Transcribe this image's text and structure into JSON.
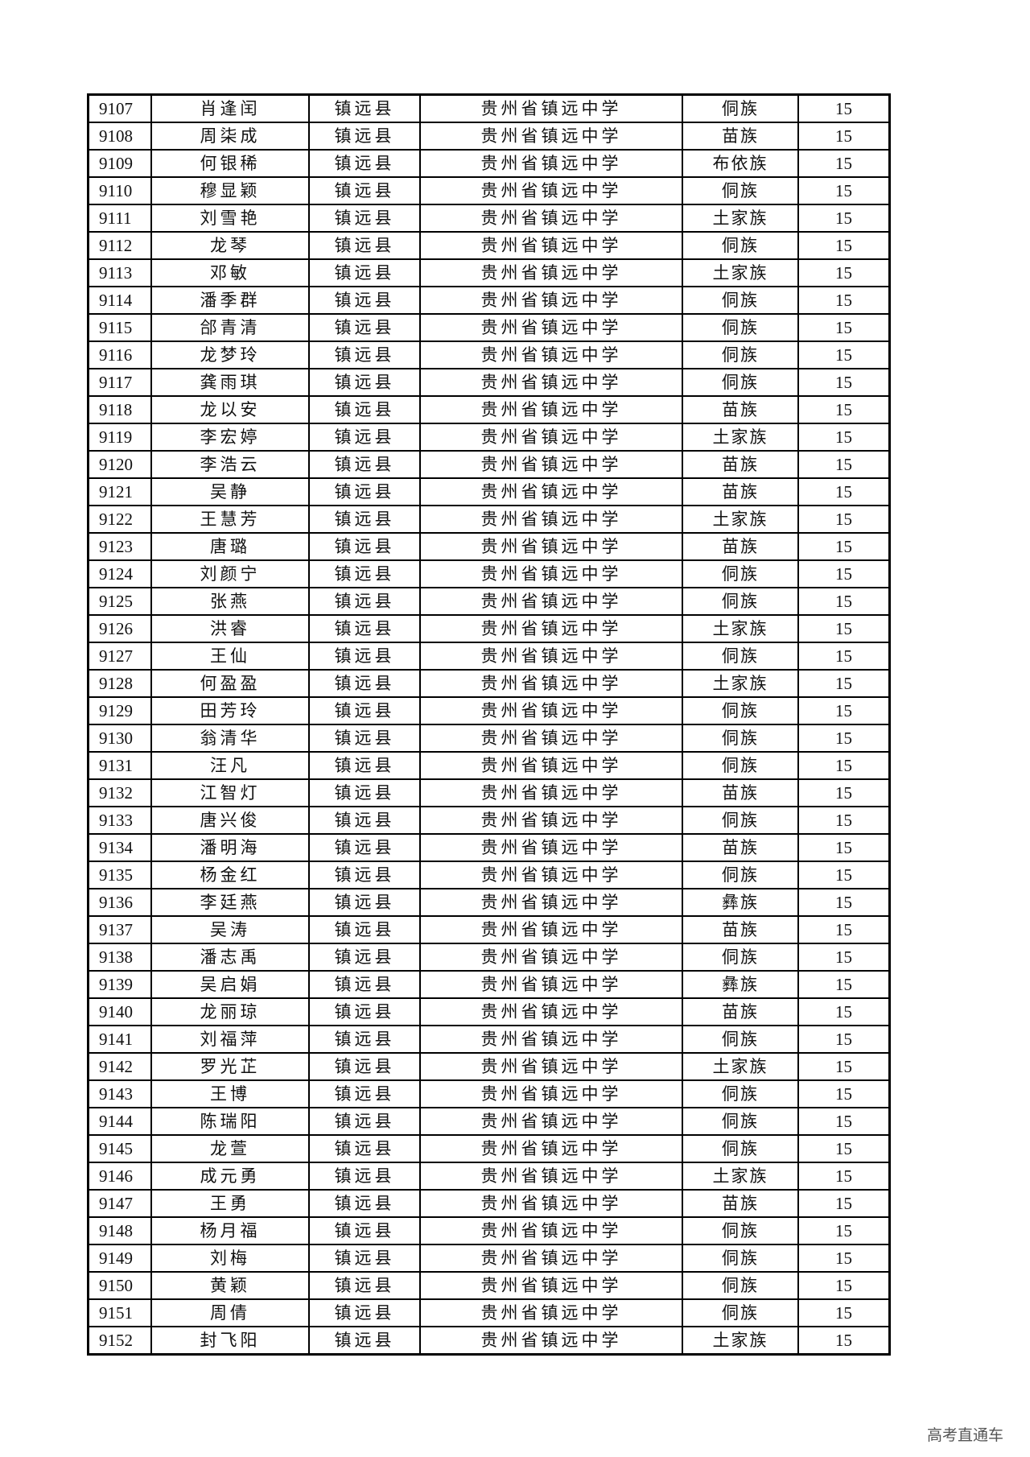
{
  "rows": [
    [
      "9107",
      "肖逢闰",
      "镇远县",
      "贵州省镇远中学",
      "侗族",
      "15"
    ],
    [
      "9108",
      "周柒成",
      "镇远县",
      "贵州省镇远中学",
      "苗族",
      "15"
    ],
    [
      "9109",
      "何银稀",
      "镇远县",
      "贵州省镇远中学",
      "布依族",
      "15"
    ],
    [
      "9110",
      "穆显颖",
      "镇远县",
      "贵州省镇远中学",
      "侗族",
      "15"
    ],
    [
      "9111",
      "刘雪艳",
      "镇远县",
      "贵州省镇远中学",
      "土家族",
      "15"
    ],
    [
      "9112",
      "龙琴",
      "镇远县",
      "贵州省镇远中学",
      "侗族",
      "15"
    ],
    [
      "9113",
      "邓敏",
      "镇远县",
      "贵州省镇远中学",
      "土家族",
      "15"
    ],
    [
      "9114",
      "潘季群",
      "镇远县",
      "贵州省镇远中学",
      "侗族",
      "15"
    ],
    [
      "9115",
      "郃青清",
      "镇远县",
      "贵州省镇远中学",
      "侗族",
      "15"
    ],
    [
      "9116",
      "龙梦玲",
      "镇远县",
      "贵州省镇远中学",
      "侗族",
      "15"
    ],
    [
      "9117",
      "龚雨琪",
      "镇远县",
      "贵州省镇远中学",
      "侗族",
      "15"
    ],
    [
      "9118",
      "龙以安",
      "镇远县",
      "贵州省镇远中学",
      "苗族",
      "15"
    ],
    [
      "9119",
      "李宏婷",
      "镇远县",
      "贵州省镇远中学",
      "土家族",
      "15"
    ],
    [
      "9120",
      "李浩云",
      "镇远县",
      "贵州省镇远中学",
      "苗族",
      "15"
    ],
    [
      "9121",
      "吴静",
      "镇远县",
      "贵州省镇远中学",
      "苗族",
      "15"
    ],
    [
      "9122",
      "王慧芳",
      "镇远县",
      "贵州省镇远中学",
      "土家族",
      "15"
    ],
    [
      "9123",
      "唐璐",
      "镇远县",
      "贵州省镇远中学",
      "苗族",
      "15"
    ],
    [
      "9124",
      "刘颜宁",
      "镇远县",
      "贵州省镇远中学",
      "侗族",
      "15"
    ],
    [
      "9125",
      "张燕",
      "镇远县",
      "贵州省镇远中学",
      "侗族",
      "15"
    ],
    [
      "9126",
      "洪睿",
      "镇远县",
      "贵州省镇远中学",
      "土家族",
      "15"
    ],
    [
      "9127",
      "王仙",
      "镇远县",
      "贵州省镇远中学",
      "侗族",
      "15"
    ],
    [
      "9128",
      "何盈盈",
      "镇远县",
      "贵州省镇远中学",
      "土家族",
      "15"
    ],
    [
      "9129",
      "田芳玲",
      "镇远县",
      "贵州省镇远中学",
      "侗族",
      "15"
    ],
    [
      "9130",
      "翁清华",
      "镇远县",
      "贵州省镇远中学",
      "侗族",
      "15"
    ],
    [
      "9131",
      "汪凡",
      "镇远县",
      "贵州省镇远中学",
      "侗族",
      "15"
    ],
    [
      "9132",
      "江智灯",
      "镇远县",
      "贵州省镇远中学",
      "苗族",
      "15"
    ],
    [
      "9133",
      "唐兴俊",
      "镇远县",
      "贵州省镇远中学",
      "侗族",
      "15"
    ],
    [
      "9134",
      "潘明海",
      "镇远县",
      "贵州省镇远中学",
      "苗族",
      "15"
    ],
    [
      "9135",
      "杨金红",
      "镇远县",
      "贵州省镇远中学",
      "侗族",
      "15"
    ],
    [
      "9136",
      "李廷燕",
      "镇远县",
      "贵州省镇远中学",
      "彝族",
      "15"
    ],
    [
      "9137",
      "吴涛",
      "镇远县",
      "贵州省镇远中学",
      "苗族",
      "15"
    ],
    [
      "9138",
      "潘志禹",
      "镇远县",
      "贵州省镇远中学",
      "侗族",
      "15"
    ],
    [
      "9139",
      "吴启娟",
      "镇远县",
      "贵州省镇远中学",
      "彝族",
      "15"
    ],
    [
      "9140",
      "龙丽琼",
      "镇远县",
      "贵州省镇远中学",
      "苗族",
      "15"
    ],
    [
      "9141",
      "刘福萍",
      "镇远县",
      "贵州省镇远中学",
      "侗族",
      "15"
    ],
    [
      "9142",
      "罗光芷",
      "镇远县",
      "贵州省镇远中学",
      "土家族",
      "15"
    ],
    [
      "9143",
      "王博",
      "镇远县",
      "贵州省镇远中学",
      "侗族",
      "15"
    ],
    [
      "9144",
      "陈瑞阳",
      "镇远县",
      "贵州省镇远中学",
      "侗族",
      "15"
    ],
    [
      "9145",
      "龙萱",
      "镇远县",
      "贵州省镇远中学",
      "侗族",
      "15"
    ],
    [
      "9146",
      "成元勇",
      "镇远县",
      "贵州省镇远中学",
      "土家族",
      "15"
    ],
    [
      "9147",
      "王勇",
      "镇远县",
      "贵州省镇远中学",
      "苗族",
      "15"
    ],
    [
      "9148",
      "杨月福",
      "镇远县",
      "贵州省镇远中学",
      "侗族",
      "15"
    ],
    [
      "9149",
      "刘梅",
      "镇远县",
      "贵州省镇远中学",
      "侗族",
      "15"
    ],
    [
      "9150",
      "黄颖",
      "镇远县",
      "贵州省镇远中学",
      "侗族",
      "15"
    ],
    [
      "9151",
      "周倩",
      "镇远县",
      "贵州省镇远中学",
      "侗族",
      "15"
    ],
    [
      "9152",
      "封飞阳",
      "镇远县",
      "贵州省镇远中学",
      "土家族",
      "15"
    ]
  ],
  "watermark": "高考直通车"
}
